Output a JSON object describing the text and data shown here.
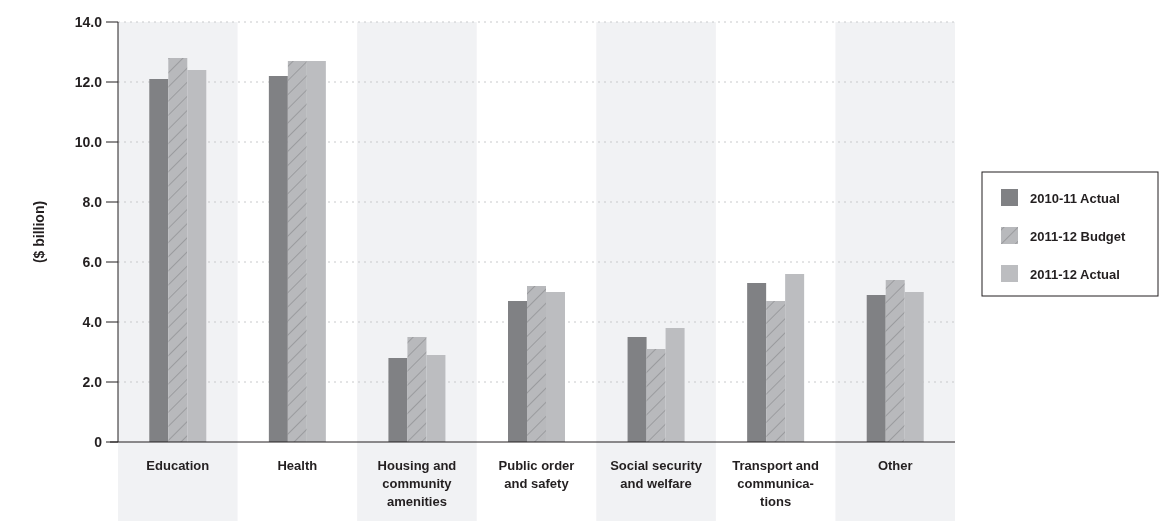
{
  "chart_data": {
    "type": "bar",
    "ylabel": "($ billion)",
    "categories": [
      "Education",
      "Health",
      "Housing and community amenities",
      "Public order and safety",
      "Social security and welfare",
      "Transport and communica-tions",
      "Other"
    ],
    "series": [
      {
        "name": "2010-11 Actual",
        "color": "#808184",
        "values": [
          12.1,
          12.2,
          2.8,
          4.7,
          3.5,
          5.3,
          4.9
        ]
      },
      {
        "name": "2011-12 Budget",
        "color": "#b8b9bc",
        "values": [
          12.8,
          12.7,
          3.5,
          5.2,
          3.1,
          4.7,
          5.4
        ]
      },
      {
        "name": "2011-12 Actual",
        "color": "#bcbdc0",
        "values": [
          12.4,
          12.7,
          2.9,
          5.0,
          3.8,
          5.6,
          5.0
        ]
      }
    ],
    "ylim": [
      0,
      14
    ],
    "yticks": [
      {
        "value": 0,
        "label": "0"
      },
      {
        "value": 2,
        "label": "2.0"
      },
      {
        "value": 4,
        "label": "4.0"
      },
      {
        "value": 6,
        "label": "6.0"
      },
      {
        "value": 8,
        "label": "8.0"
      },
      {
        "value": 10,
        "label": "10.0"
      },
      {
        "value": 12,
        "label": "12.0"
      },
      {
        "value": 14,
        "label": "14.0"
      }
    ],
    "grid": "y",
    "legend": "right"
  }
}
